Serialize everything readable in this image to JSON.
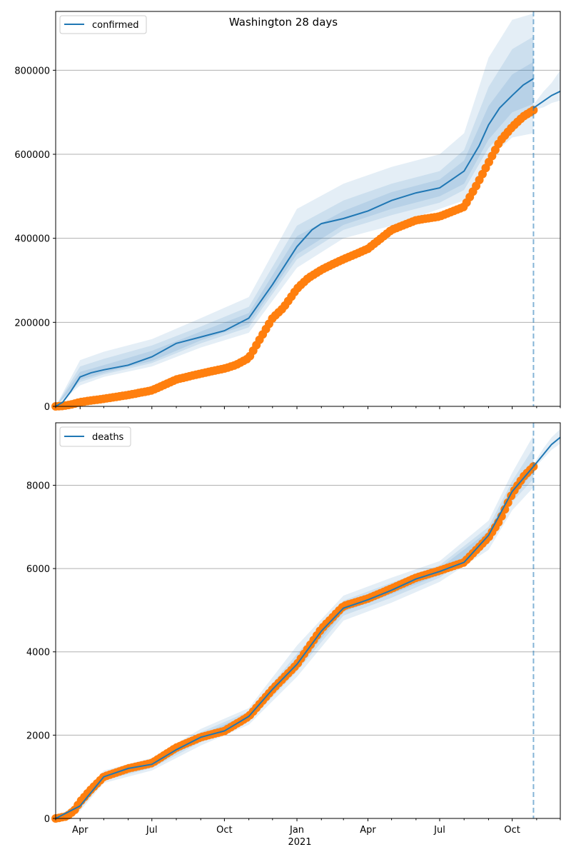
{
  "chart_data": [
    {
      "type": "line",
      "title": "Washington 28 days",
      "xlabel": "",
      "ylabel": "",
      "ylim": [
        0,
        940000
      ],
      "ytick_values": [
        0,
        200000,
        400000,
        600000,
        800000
      ],
      "ytick_labels": [
        "0",
        "200000",
        "400000",
        "600000",
        "800000"
      ],
      "grid": "horizontal",
      "legend": {
        "placement": "upper-left",
        "entries": [
          "confirmed"
        ]
      },
      "forecast_start": "2021-10-28",
      "series": [
        {
          "name": "confirmed",
          "kind": "model-median",
          "color": "#1f77b4",
          "x": [
            "2020-03-01",
            "2020-03-10",
            "2020-03-20",
            "2020-04-01",
            "2020-04-15",
            "2020-05-01",
            "2020-06-01",
            "2020-07-01",
            "2020-08-01",
            "2020-09-01",
            "2020-10-01",
            "2020-11-01",
            "2020-12-01",
            "2021-01-01",
            "2021-01-20",
            "2021-02-01",
            "2021-03-01",
            "2021-04-01",
            "2021-05-01",
            "2021-06-01",
            "2021-07-01",
            "2021-08-01",
            "2021-08-20",
            "2021-09-01",
            "2021-09-15",
            "2021-10-01",
            "2021-10-15",
            "2021-10-28"
          ],
          "values": [
            0,
            10000,
            35000,
            70000,
            80000,
            87000,
            98000,
            118000,
            150000,
            165000,
            180000,
            210000,
            290000,
            380000,
            420000,
            435000,
            447000,
            465000,
            490000,
            508000,
            520000,
            560000,
            620000,
            670000,
            710000,
            740000,
            765000,
            780000
          ]
        },
        {
          "name": "",
          "kind": "forecast",
          "color": "#1f77b4",
          "x": [
            "2021-10-28",
            "2021-11-10",
            "2021-11-20",
            "2021-12-01"
          ],
          "values": [
            710000,
            727000,
            740000,
            750000
          ]
        },
        {
          "name": "",
          "kind": "observed",
          "color": "#ff7f0e",
          "x": [
            "2020-03-01",
            "2020-03-10",
            "2020-03-20",
            "2020-04-01",
            "2020-04-15",
            "2020-05-01",
            "2020-06-01",
            "2020-07-01",
            "2020-08-01",
            "2020-09-01",
            "2020-10-01",
            "2020-10-15",
            "2020-11-01",
            "2020-11-15",
            "2020-12-01",
            "2020-12-15",
            "2021-01-01",
            "2021-01-15",
            "2021-02-01",
            "2021-02-15",
            "2021-03-01",
            "2021-04-01",
            "2021-05-01",
            "2021-06-01",
            "2021-07-01",
            "2021-08-01",
            "2021-08-15",
            "2021-09-01",
            "2021-09-15",
            "2021-10-01",
            "2021-10-15",
            "2021-10-28"
          ],
          "values": [
            0,
            1000,
            4000,
            10000,
            14000,
            18000,
            27000,
            38000,
            64000,
            78000,
            90000,
            98000,
            115000,
            160000,
            210000,
            235000,
            280000,
            305000,
            325000,
            338000,
            350000,
            375000,
            420000,
            443000,
            452000,
            475000,
            520000,
            580000,
            630000,
            665000,
            690000,
            705000
          ]
        }
      ],
      "bands": [
        {
          "x": [
            "2020-03-01",
            "2020-04-01",
            "2020-05-01",
            "2020-07-01",
            "2020-09-01",
            "2020-11-01",
            "2021-01-01",
            "2021-03-01",
            "2021-05-01",
            "2021-07-01",
            "2021-08-01",
            "2021-09-01",
            "2021-10-01",
            "2021-10-28"
          ],
          "lower": [
            0,
            50000,
            70000,
            95000,
            140000,
            175000,
            330000,
            400000,
            430000,
            470000,
            490000,
            590000,
            640000,
            650000
          ],
          "upper": [
            0,
            110000,
            130000,
            160000,
            210000,
            260000,
            470000,
            530000,
            570000,
            600000,
            650000,
            830000,
            920000,
            935000
          ]
        },
        {
          "x": [
            "2020-03-01",
            "2020-04-01",
            "2020-05-01",
            "2020-07-01",
            "2020-09-01",
            "2020-11-01",
            "2021-01-01",
            "2021-03-01",
            "2021-05-01",
            "2021-07-01",
            "2021-08-01",
            "2021-09-01",
            "2021-10-01",
            "2021-10-28"
          ],
          "lower": [
            0,
            58000,
            76000,
            103000,
            150000,
            188000,
            350000,
            420000,
            455000,
            485000,
            515000,
            615000,
            675000,
            690000
          ],
          "upper": [
            0,
            95000,
            113000,
            145000,
            190000,
            237000,
            430000,
            490000,
            530000,
            560000,
            610000,
            760000,
            850000,
            880000
          ]
        },
        {
          "x": [
            "2020-03-01",
            "2020-04-01",
            "2020-05-01",
            "2020-07-01",
            "2020-09-01",
            "2020-11-01",
            "2021-01-01",
            "2021-03-01",
            "2021-05-01",
            "2021-07-01",
            "2021-08-01",
            "2021-09-01",
            "2021-10-01",
            "2021-10-28"
          ],
          "lower": [
            0,
            63000,
            80000,
            108000,
            157000,
            196000,
            362000,
            432000,
            470000,
            500000,
            530000,
            635000,
            700000,
            720000
          ],
          "upper": [
            0,
            82000,
            98000,
            132000,
            178000,
            222000,
            405000,
            465000,
            510000,
            540000,
            585000,
            715000,
            790000,
            820000
          ]
        },
        {
          "x": [
            "2021-10-28",
            "2021-11-10",
            "2021-11-20",
            "2021-12-01"
          ],
          "lower": [
            705000,
            712000,
            722000,
            728000
          ],
          "upper": [
            718000,
            750000,
            770000,
            800000
          ]
        }
      ]
    },
    {
      "type": "line",
      "title": "",
      "xlabel": "",
      "ylabel": "",
      "ylim": [
        0,
        9500
      ],
      "ytick_values": [
        0,
        2000,
        4000,
        6000,
        8000
      ],
      "ytick_labels": [
        "0",
        "2000",
        "4000",
        "6000",
        "8000"
      ],
      "xtick_labels": [
        "Apr",
        "Jul",
        "Oct",
        "Jan",
        "Apr",
        "Jul",
        "Oct"
      ],
      "xtick_dates": [
        "2020-04-01",
        "2020-07-01",
        "2020-10-01",
        "2021-01-01",
        "2021-04-01",
        "2021-07-01",
        "2021-10-01"
      ],
      "year_label": "2021",
      "grid": "horizontal",
      "legend": {
        "placement": "upper-left",
        "entries": [
          "deaths"
        ]
      },
      "forecast_start": "2021-10-28",
      "series": [
        {
          "name": "deaths",
          "kind": "model-median",
          "color": "#1f77b4",
          "x": [
            "2020-03-01",
            "2020-04-01",
            "2020-05-01",
            "2020-06-01",
            "2020-07-01",
            "2020-08-01",
            "2020-09-01",
            "2020-10-01",
            "2020-11-01",
            "2020-12-01",
            "2021-01-01",
            "2021-02-01",
            "2021-03-01",
            "2021-04-01",
            "2021-05-01",
            "2021-06-01",
            "2021-07-01",
            "2021-08-01",
            "2021-09-01",
            "2021-10-01",
            "2021-10-28"
          ],
          "values": [
            0,
            300,
            1000,
            1200,
            1300,
            1650,
            1950,
            2100,
            2450,
            3100,
            3700,
            4500,
            5050,
            5250,
            5480,
            5750,
            5930,
            6150,
            6800,
            7850,
            8450
          ]
        },
        {
          "name": "",
          "kind": "forecast",
          "color": "#1f77b4",
          "x": [
            "2021-10-28",
            "2021-11-10",
            "2021-11-20",
            "2021-12-01"
          ],
          "values": [
            8450,
            8750,
            8980,
            9150
          ]
        },
        {
          "name": "",
          "kind": "observed",
          "color": "#ff7f0e",
          "x": [
            "2020-03-01",
            "2020-03-15",
            "2020-03-25",
            "2020-04-01",
            "2020-04-15",
            "2020-05-01",
            "2020-06-01",
            "2020-07-01",
            "2020-08-01",
            "2020-09-01",
            "2020-10-01",
            "2020-11-01",
            "2020-12-01",
            "2021-01-01",
            "2021-02-01",
            "2021-03-01",
            "2021-04-01",
            "2021-05-01",
            "2021-06-01",
            "2021-07-01",
            "2021-08-01",
            "2021-09-01",
            "2021-09-15",
            "2021-10-01",
            "2021-10-15",
            "2021-10-28"
          ],
          "values": [
            0,
            50,
            200,
            400,
            700,
            1000,
            1200,
            1330,
            1700,
            1950,
            2100,
            2450,
            3100,
            3700,
            4550,
            5100,
            5280,
            5520,
            5780,
            5950,
            6150,
            6750,
            7150,
            7800,
            8200,
            8450
          ]
        }
      ],
      "bands": [
        {
          "x": [
            "2020-03-01",
            "2020-04-01",
            "2020-05-01",
            "2020-07-01",
            "2020-09-01",
            "2020-11-01",
            "2021-01-01",
            "2021-03-01",
            "2021-05-01",
            "2021-07-01",
            "2021-09-01",
            "2021-10-01",
            "2021-10-28"
          ],
          "lower": [
            0,
            180,
            850,
            1150,
            1750,
            2250,
            3400,
            4750,
            5180,
            5680,
            6450,
            7400,
            7950
          ],
          "upper": [
            0,
            420,
            1150,
            1450,
            2150,
            2650,
            4150,
            5350,
            5780,
            6180,
            7150,
            8300,
            9200
          ]
        },
        {
          "x": [
            "2020-03-01",
            "2020-04-01",
            "2020-05-01",
            "2020-07-01",
            "2020-09-01",
            "2020-11-01",
            "2021-01-01",
            "2021-03-01",
            "2021-05-01",
            "2021-07-01",
            "2021-09-01",
            "2021-10-01",
            "2021-10-28"
          ],
          "lower": [
            0,
            230,
            910,
            1210,
            1830,
            2330,
            3530,
            4870,
            5300,
            5780,
            6600,
            7600,
            8150
          ],
          "upper": [
            0,
            370,
            1090,
            1390,
            2070,
            2570,
            3950,
            5230,
            5660,
            6080,
            7000,
            8100,
            8900
          ]
        },
        {
          "x": [
            "2020-03-01",
            "2020-04-01",
            "2020-05-01",
            "2020-07-01",
            "2020-09-01",
            "2020-11-01",
            "2021-01-01",
            "2021-03-01",
            "2021-05-01",
            "2021-07-01",
            "2021-09-01",
            "2021-10-01",
            "2021-10-28"
          ],
          "lower": [
            0,
            265,
            955,
            1255,
            1890,
            2390,
            3610,
            4960,
            5390,
            5850,
            6700,
            7730,
            8300
          ],
          "upper": [
            0,
            335,
            1045,
            1345,
            2010,
            2510,
            3790,
            5140,
            5570,
            6010,
            6900,
            7970,
            8600
          ]
        },
        {
          "x": [
            "2021-10-28",
            "2021-11-10",
            "2021-11-20",
            "2021-12-01"
          ],
          "lower": [
            8400,
            8650,
            8850,
            9000
          ],
          "upper": [
            8500,
            8900,
            9150,
            9350
          ]
        }
      ]
    }
  ]
}
